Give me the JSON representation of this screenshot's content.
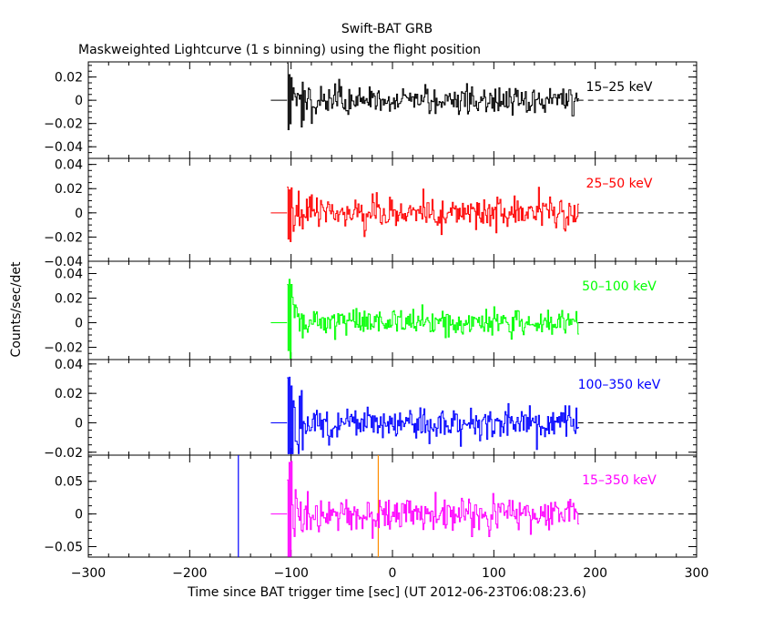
{
  "title": "Swift-BAT GRB",
  "subtitle": "Maskweighted Lightcurve (1 s binning) using the flight position",
  "chart_data": {
    "type": "line",
    "xlabel": "Time since BAT trigger time [sec] (UT 2012-06-23T06:08:23.6)",
    "ylabel": "Counts/sec/det",
    "xlim": [
      -300,
      300
    ],
    "x_ticks": [
      -300,
      -200,
      -100,
      0,
      100,
      200,
      300
    ],
    "x_tick_labels": [
      "−300",
      "−200",
      "−100",
      "0",
      "100",
      "200",
      "300"
    ],
    "data_x_range": [
      -104,
      183
    ],
    "baseline_span": [
      -120,
      300
    ],
    "panels": [
      {
        "name": "15-25 keV",
        "label": "15–25 keV",
        "color": "#000000",
        "ylim": [
          -0.05,
          0.033
        ],
        "y_ticks": [
          -0.04,
          -0.02,
          0,
          0.02
        ],
        "y_tick_labels": [
          "−0.04",
          "−0.02",
          "0",
          "0.02"
        ],
        "noise_sigma": 0.006,
        "burst_peak": 0.035
      },
      {
        "name": "25-50 keV",
        "label": "25–50 keV",
        "color": "#ff0000",
        "ylim": [
          -0.04,
          0.045
        ],
        "y_ticks": [
          -0.04,
          -0.02,
          0,
          0.02,
          0.04
        ],
        "y_tick_labels": [
          "−0.04",
          "−0.02",
          "0",
          "0.02",
          "0.04"
        ],
        "noise_sigma": 0.0065,
        "burst_peak": 0.033
      },
      {
        "name": "50-100 keV",
        "label": "50–100 keV",
        "color": "#00ff00",
        "ylim": [
          -0.03,
          0.05
        ],
        "y_ticks": [
          -0.02,
          0,
          0.02,
          0.04
        ],
        "y_tick_labels": [
          "−0.02",
          "0",
          "0.02",
          "0.04"
        ],
        "noise_sigma": 0.0055,
        "burst_peak": 0.04
      },
      {
        "name": "100-350 keV",
        "label": "100–350 keV",
        "color": "#0000ff",
        "ylim": [
          -0.022,
          0.043
        ],
        "y_ticks": [
          -0.02,
          0,
          0.02,
          0.04
        ],
        "y_tick_labels": [
          "−0.02",
          "0",
          "0.02",
          "0.04"
        ],
        "noise_sigma": 0.006,
        "burst_peak": 0.04
      },
      {
        "name": "15-350 keV",
        "label": "15–350 keV",
        "color": "#ff00ff",
        "ylim": [
          -0.066,
          0.09
        ],
        "y_ticks": [
          -0.05,
          0,
          0.05
        ],
        "y_tick_labels": [
          "−0.05",
          "0",
          "0.05"
        ],
        "noise_sigma": 0.013,
        "burst_peak": 0.085,
        "markers": [
          {
            "x": -152,
            "color": "#0000ff"
          },
          {
            "x": -14,
            "color": "#ff8c00"
          }
        ]
      }
    ]
  }
}
